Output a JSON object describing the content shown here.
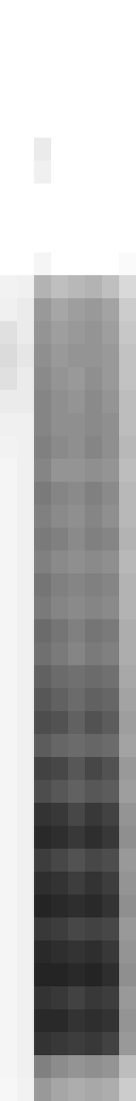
{
  "chart_data": {
    "type": "heatmap",
    "tick_labels": false,
    "grid": false,
    "color": "#000000",
    "color_range": [
      0,
      100
    ],
    "cells": [
      [
        0,
        0,
        0,
        0,
        0,
        0,
        0,
        0
      ],
      [
        0,
        0,
        0,
        0,
        0,
        0,
        0,
        0
      ],
      [
        0,
        0,
        0,
        0,
        0,
        0,
        0,
        0
      ],
      [
        0,
        0,
        0,
        0,
        0,
        0,
        0,
        0
      ],
      [
        0,
        0,
        0,
        0,
        0,
        0,
        0,
        0
      ],
      [
        0,
        0,
        0,
        0,
        0,
        0,
        0,
        0
      ],
      [
        0,
        0,
        8,
        0,
        0,
        0,
        0,
        0
      ],
      [
        0,
        0,
        6,
        0,
        0,
        0,
        0,
        0
      ],
      [
        0,
        0,
        0,
        0,
        0,
        0,
        0,
        0
      ],
      [
        0,
        0,
        0,
        0,
        0,
        0,
        0,
        0
      ],
      [
        0,
        0,
        0,
        0,
        0,
        0,
        0,
        0
      ],
      [
        0,
        0,
        4,
        0,
        0,
        0,
        0,
        2
      ],
      [
        5,
        6,
        30,
        25,
        28,
        30,
        25,
        15
      ],
      [
        6,
        8,
        40,
        35,
        38,
        40,
        36,
        20
      ],
      [
        12,
        8,
        42,
        38,
        40,
        42,
        38,
        22
      ],
      [
        14,
        10,
        44,
        40,
        42,
        42,
        40,
        24
      ],
      [
        12,
        8,
        46,
        42,
        40,
        44,
        40,
        24
      ],
      [
        8,
        8,
        48,
        44,
        42,
        46,
        42,
        26
      ],
      [
        6,
        6,
        48,
        44,
        44,
        46,
        44,
        26
      ],
      [
        5,
        6,
        50,
        46,
        44,
        48,
        44,
        28
      ],
      [
        4,
        6,
        48,
        42,
        42,
        44,
        42,
        26
      ],
      [
        4,
        6,
        52,
        48,
        46,
        50,
        46,
        28
      ],
      [
        4,
        6,
        50,
        46,
        44,
        48,
        44,
        28
      ],
      [
        4,
        6,
        52,
        50,
        46,
        50,
        48,
        30
      ],
      [
        4,
        6,
        50,
        46,
        44,
        46,
        44,
        28
      ],
      [
        4,
        6,
        54,
        50,
        48,
        50,
        48,
        30
      ],
      [
        4,
        6,
        52,
        48,
        46,
        48,
        46,
        30
      ],
      [
        4,
        6,
        58,
        54,
        50,
        54,
        52,
        32
      ],
      [
        4,
        6,
        56,
        52,
        48,
        52,
        50,
        32
      ],
      [
        4,
        6,
        62,
        58,
        56,
        58,
        56,
        34
      ],
      [
        4,
        6,
        66,
        62,
        58,
        62,
        60,
        36
      ],
      [
        4,
        6,
        70,
        68,
        62,
        68,
        64,
        38
      ],
      [
        4,
        6,
        64,
        60,
        58,
        60,
        58,
        36
      ],
      [
        4,
        6,
        74,
        72,
        66,
        72,
        68,
        40
      ],
      [
        4,
        6,
        70,
        66,
        62,
        66,
        64,
        38
      ],
      [
        4,
        6,
        80,
        78,
        72,
        78,
        74,
        42
      ],
      [
        4,
        6,
        84,
        82,
        78,
        82,
        78,
        44
      ],
      [
        4,
        6,
        76,
        72,
        68,
        72,
        70,
        40
      ],
      [
        4,
        6,
        82,
        80,
        76,
        80,
        76,
        42
      ],
      [
        4,
        6,
        86,
        84,
        82,
        84,
        80,
        44
      ],
      [
        4,
        6,
        78,
        76,
        72,
        74,
        72,
        40
      ],
      [
        4,
        6,
        84,
        82,
        80,
        82,
        78,
        42
      ],
      [
        4,
        6,
        86,
        86,
        84,
        86,
        82,
        44
      ],
      [
        4,
        6,
        80,
        78,
        74,
        78,
        76,
        40
      ],
      [
        4,
        6,
        84,
        84,
        80,
        82,
        80,
        42
      ],
      [
        4,
        6,
        80,
        78,
        76,
        78,
        74,
        40
      ],
      [
        4,
        6,
        50,
        45,
        42,
        44,
        42,
        26
      ],
      [
        3,
        5,
        40,
        35,
        32,
        34,
        32,
        20
      ]
    ]
  }
}
